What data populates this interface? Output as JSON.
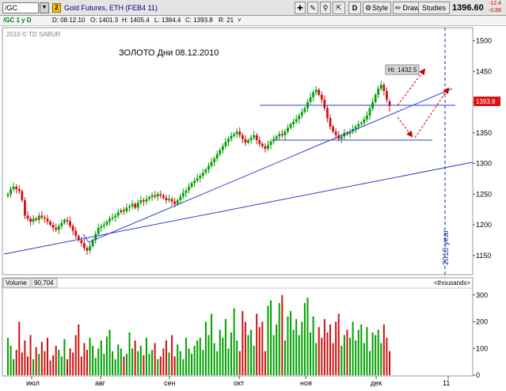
{
  "toolbar": {
    "symbol": "/GC",
    "link_number": "2",
    "instrument": "Gold Futures, ETH (FEB4 11)",
    "buttons": {
      "d": "D",
      "style": "Style",
      "drawings": "Drawings",
      "studies": "Studies"
    },
    "last_price": "1396.60",
    "change_abs": "-12.4",
    "change_pct": "-0.88"
  },
  "info_bar": {
    "series": "/GC 1 y D",
    "d": "D: 08.12.10",
    "o": "O: 1401.3",
    "h": "H: 1405.4",
    "l": "L: 1384.4",
    "c": "C: 1393.8",
    "r": "R: 21",
    "chevron": "˅"
  },
  "price_panel": {
    "watermark": "2010 © TD SABUR",
    "annotation": "ЗОЛОТО  Дни  08.12.2010",
    "hi_label": "Hi: 1432.5",
    "current_price_label": "1393.8",
    "year_label": "2010 year"
  },
  "volume_panel": {
    "label": "Volume",
    "value": "90,704",
    "units": "<thousands>"
  },
  "chart_data": [
    {
      "type": "candlestick",
      "ylim": [
        1120,
        1520
      ],
      "yticks": [
        1150,
        1200,
        1250,
        1300,
        1350,
        1400,
        1450,
        1500
      ],
      "xticks": [
        "июл",
        "авг",
        "сен",
        "окт",
        "ноя",
        "дек",
        "11"
      ],
      "last": {
        "o": 1401.3,
        "h": 1405.4,
        "l": 1384.4,
        "c": 1393.8
      },
      "hi": 1432.5,
      "closes": [
        1250,
        1258,
        1262,
        1258,
        1255,
        1240,
        1215,
        1210,
        1205,
        1210,
        1208,
        1215,
        1212,
        1210,
        1205,
        1200,
        1195,
        1192,
        1198,
        1203,
        1208,
        1206,
        1198,
        1190,
        1182,
        1175,
        1170,
        1162,
        1158,
        1165,
        1175,
        1185,
        1195,
        1198,
        1200,
        1205,
        1210,
        1212,
        1215,
        1220,
        1224,
        1222,
        1228,
        1230,
        1234,
        1228,
        1236,
        1240,
        1238,
        1242,
        1245,
        1248,
        1246,
        1250,
        1248,
        1244,
        1240,
        1242,
        1238,
        1234,
        1240,
        1246,
        1252,
        1256,
        1262,
        1268,
        1272,
        1276,
        1280,
        1285,
        1290,
        1296,
        1302,
        1308,
        1315,
        1322,
        1328,
        1335,
        1340,
        1345,
        1348,
        1352,
        1346,
        1340,
        1334,
        1338,
        1342,
        1346,
        1338,
        1332,
        1328,
        1324,
        1330,
        1336,
        1340,
        1344,
        1348,
        1346,
        1352,
        1358,
        1364,
        1368,
        1372,
        1378,
        1384,
        1390,
        1400,
        1408,
        1416,
        1420,
        1412,
        1404,
        1390,
        1374,
        1360,
        1352,
        1346,
        1340,
        1344,
        1350,
        1348,
        1352,
        1356,
        1360,
        1364,
        1366,
        1372,
        1378,
        1390,
        1400,
        1412,
        1422,
        1428,
        1418,
        1404,
        1393.8
      ]
    },
    {
      "type": "bar",
      "ylim": [
        0,
        320
      ],
      "yticks": [
        0,
        100,
        200,
        300
      ],
      "values": [
        140,
        110,
        60,
        95,
        200,
        85,
        130,
        70,
        150,
        60,
        105,
        80,
        125,
        90,
        140,
        55,
        75,
        110,
        95,
        70,
        135,
        60,
        100,
        85,
        150,
        190,
        70,
        120,
        95,
        140,
        110,
        65,
        100,
        130,
        80,
        145,
        170,
        90,
        60,
        115,
        100,
        70,
        80,
        160,
        100,
        130,
        90,
        110,
        75,
        140,
        80,
        95,
        120,
        60,
        70,
        100,
        130,
        85,
        150,
        70,
        115,
        90,
        60,
        140,
        100,
        80,
        110,
        130,
        140,
        95,
        200,
        150,
        230,
        120,
        90,
        170,
        140,
        210,
        100,
        160,
        250,
        130,
        90,
        240,
        200,
        150,
        170,
        110,
        230,
        180,
        200,
        90,
        260,
        280,
        150,
        190,
        270,
        300,
        130,
        220,
        240,
        170,
        210,
        150,
        200,
        270,
        290,
        160,
        220,
        120,
        180,
        140,
        210,
        160,
        190,
        120,
        200,
        230,
        110,
        150,
        170,
        140,
        200,
        130,
        170,
        190,
        120,
        180,
        90,
        160,
        150,
        170,
        120,
        190,
        140,
        90
      ]
    }
  ]
}
